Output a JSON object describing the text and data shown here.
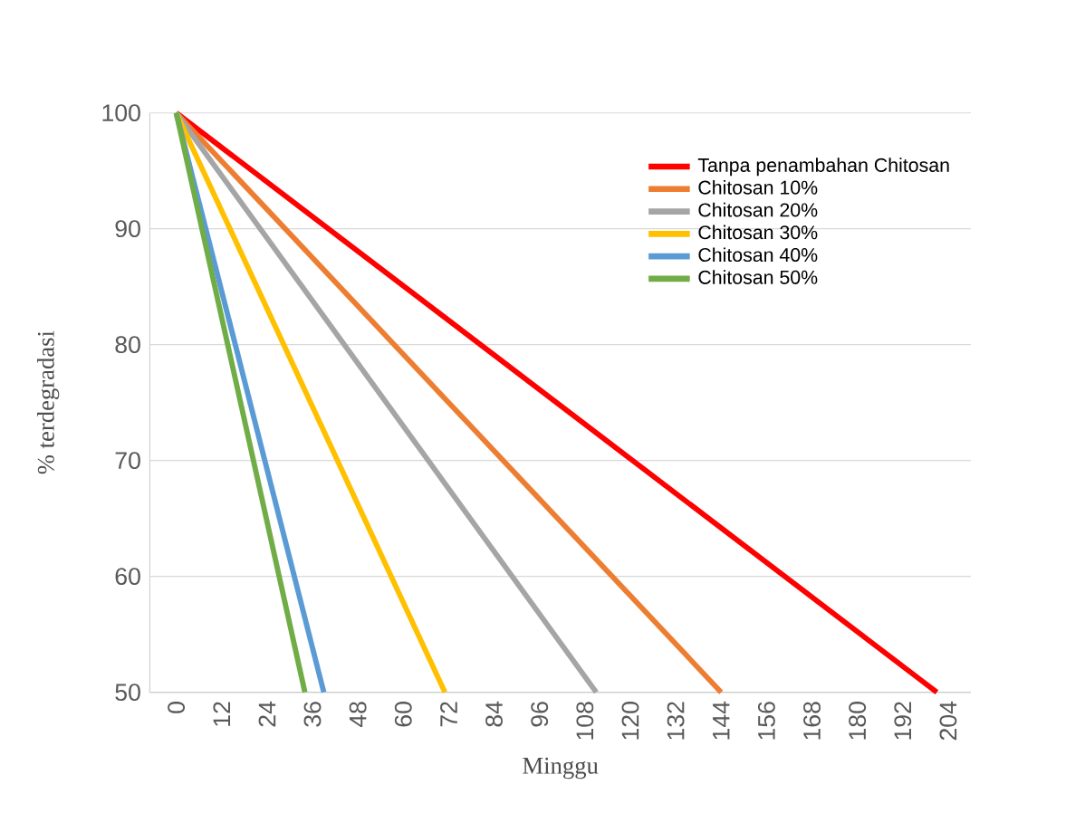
{
  "chart_data": {
    "type": "line",
    "xlabel": "Minggu",
    "ylabel": "% terdegradasi",
    "xlim": [
      -7,
      210
    ],
    "ylim": [
      50,
      100
    ],
    "xticks": [
      0,
      12,
      24,
      36,
      48,
      60,
      72,
      84,
      96,
      108,
      120,
      132,
      144,
      156,
      168,
      180,
      192,
      204
    ],
    "yticks": [
      50,
      60,
      70,
      80,
      90,
      100
    ],
    "grid": "y",
    "legend": "top right",
    "marker": "none",
    "line_style": "solid",
    "series": [
      {
        "name": "Tanpa penambahan Chitosan",
        "color": "#ff0000",
        "x": [
          0,
          201
        ],
        "values": [
          100,
          50
        ]
      },
      {
        "name": "Chitosan 10%",
        "color": "#ed7d31",
        "x": [
          0,
          144
        ],
        "values": [
          100,
          50
        ]
      },
      {
        "name": "Chitosan 20%",
        "color": "#a5a5a5",
        "x": [
          0,
          111
        ],
        "values": [
          100,
          50
        ]
      },
      {
        "name": "Chitosan 30%",
        "color": "#ffc000",
        "x": [
          0,
          71
        ],
        "values": [
          100,
          50
        ]
      },
      {
        "name": "Chitosan 40%",
        "color": "#5b9bd5",
        "x": [
          0,
          39
        ],
        "values": [
          100,
          50
        ]
      },
      {
        "name": "Chitosan 50%",
        "color": "#70ad47",
        "x": [
          0,
          34
        ],
        "values": [
          100,
          50
        ]
      }
    ]
  }
}
